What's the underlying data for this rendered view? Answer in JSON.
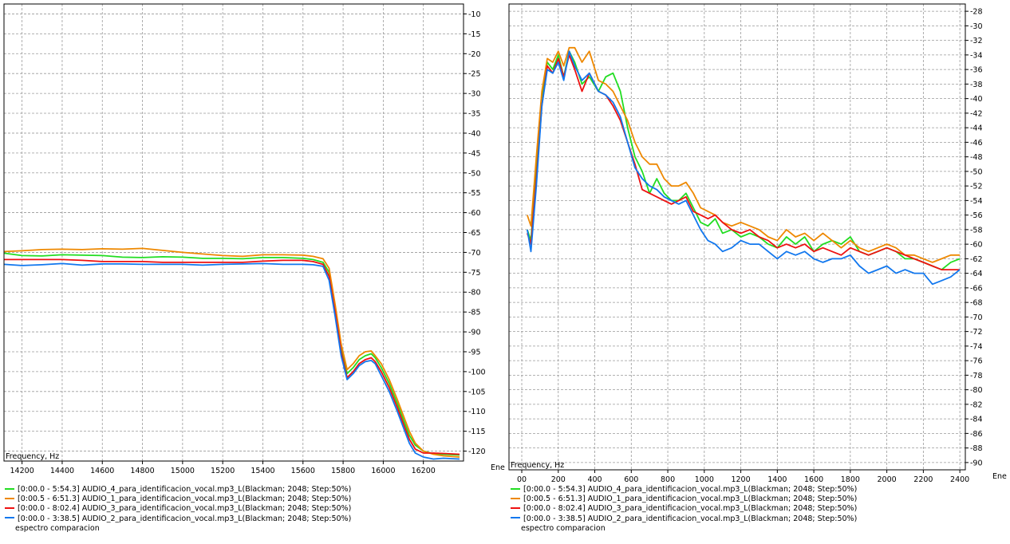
{
  "chart_data": [
    {
      "type": "line",
      "xlabel": "Frequency, Hz",
      "ylabel": "",
      "right_label": "Ene",
      "xlim": [
        14110,
        16400
      ],
      "ylim": [
        -122.5,
        -7.5
      ],
      "x_ticks": [
        14200,
        14400,
        14600,
        14800,
        15000,
        15200,
        15400,
        15600,
        15800,
        16000,
        16200
      ],
      "x_tick_labels": [
        "14200",
        "14400",
        "14600",
        "14800",
        "15000",
        "15200",
        "15400",
        "15600",
        "15800",
        "16000",
        "16200"
      ],
      "y_ticks": [
        -10,
        -15,
        -20,
        -25,
        -30,
        -35,
        -40,
        -45,
        -50,
        -55,
        -60,
        -65,
        -70,
        -75,
        -80,
        -85,
        -90,
        -95,
        -100,
        -105,
        -110,
        -115,
        -120
      ],
      "y_tick_labels": [
        "-10",
        "-15",
        "-20",
        "-25",
        "-30",
        "-35",
        "-40",
        "-45",
        "-50",
        "-55",
        "-60",
        "-65",
        "-70",
        "-75",
        "-80",
        "-85",
        "-90",
        "-95",
        "-100",
        "-105",
        "-110",
        "-115",
        "-120"
      ],
      "grid": true,
      "legend_position": "bottom",
      "series": [
        {
          "name": "[0:00.0 - 5:54.3]  AUDIO_4_para_identificacion_vocal.mp3_L(Blackman; 2048; Step:50%)",
          "color": "#22dd22",
          "x": [
            14110,
            14200,
            14300,
            14400,
            14500,
            14600,
            14700,
            14800,
            14900,
            15000,
            15100,
            15200,
            15300,
            15400,
            15500,
            15600,
            15650,
            15700,
            15730,
            15760,
            15790,
            15820,
            15850,
            15880,
            15910,
            15940,
            15960,
            15990,
            16030,
            16070,
            16100,
            16130,
            16160,
            16200,
            16250,
            16300,
            16380
          ],
          "y": [
            -70.2,
            -70.8,
            -70.9,
            -70.6,
            -70.7,
            -70.8,
            -71.2,
            -71.3,
            -71.1,
            -71.2,
            -71.5,
            -71.5,
            -71.6,
            -71.3,
            -71.3,
            -71.5,
            -71.8,
            -72.5,
            -75,
            -84,
            -94,
            -100.5,
            -99,
            -97,
            -96,
            -95.5,
            -96.5,
            -99,
            -103,
            -108,
            -112,
            -116,
            -118.5,
            -120,
            -120.7,
            -120.8,
            -121
          ]
        },
        {
          "name": "[0:00.5 - 6:51.3]  AUDIO_1_para_identificacion_vocal.mp3_L(Blackman; 2048; Step:50%)",
          "color": "#ee8800",
          "x": [
            14110,
            14200,
            14300,
            14400,
            14500,
            14600,
            14700,
            14800,
            14900,
            15000,
            15100,
            15200,
            15300,
            15400,
            15500,
            15600,
            15650,
            15700,
            15730,
            15760,
            15790,
            15820,
            15850,
            15880,
            15910,
            15940,
            15960,
            15990,
            16030,
            16070,
            16100,
            16130,
            16160,
            16200,
            16250,
            16300,
            16380
          ],
          "y": [
            -69.8,
            -69.6,
            -69.3,
            -69.2,
            -69.3,
            -69.1,
            -69.2,
            -69.0,
            -69.5,
            -70.0,
            -70.4,
            -70.8,
            -71.0,
            -70.6,
            -70.6,
            -70.7,
            -71.0,
            -71.6,
            -74,
            -83,
            -93,
            -99.5,
            -98,
            -96,
            -95,
            -94.8,
            -96,
            -98,
            -102,
            -107,
            -111,
            -115,
            -118,
            -120,
            -120.8,
            -121.2,
            -121.5
          ]
        },
        {
          "name": "[0:00.0 - 8:02.4]  AUDIO_3_para_identificacion_vocal.mp3_L(Blackman; 2048; Step:50%)",
          "color": "#ee1111",
          "x": [
            14110,
            14200,
            14300,
            14400,
            14500,
            14600,
            14700,
            14800,
            14900,
            15000,
            15100,
            15200,
            15300,
            15400,
            15500,
            15600,
            15650,
            15700,
            15730,
            15760,
            15790,
            15820,
            15850,
            15880,
            15910,
            15940,
            15960,
            15990,
            16030,
            16070,
            16100,
            16130,
            16160,
            16200,
            16250,
            16300,
            16380
          ],
          "y": [
            -71.8,
            -71.8,
            -71.8,
            -71.8,
            -72.0,
            -72.3,
            -72.3,
            -72.3,
            -72.5,
            -72.5,
            -72.5,
            -72.5,
            -72.5,
            -72.2,
            -72.0,
            -72.0,
            -72.3,
            -73.0,
            -76,
            -85,
            -95,
            -101.5,
            -100,
            -98,
            -97,
            -96.5,
            -97.5,
            -100,
            -104,
            -109,
            -113,
            -117,
            -119.5,
            -120.5,
            -120.5,
            -120.6,
            -120.8
          ]
        },
        {
          "name": "[0:00.0 - 3:38.5]  AUDIO_2_para_identificacion_vocal.mp3_L(Blackman; 2048; Step:50%)",
          "color": "#1177ee",
          "x": [
            14110,
            14200,
            14300,
            14400,
            14500,
            14600,
            14700,
            14800,
            14900,
            15000,
            15100,
            15200,
            15300,
            15400,
            15500,
            15600,
            15650,
            15700,
            15730,
            15760,
            15790,
            15820,
            15850,
            15880,
            15910,
            15940,
            15960,
            15990,
            16030,
            16070,
            16100,
            16130,
            16160,
            16200,
            16250,
            16300,
            16380
          ],
          "y": [
            -73.0,
            -73.3,
            -73.1,
            -72.8,
            -73.2,
            -72.9,
            -72.9,
            -73.0,
            -73.0,
            -73.0,
            -73.2,
            -73.0,
            -72.9,
            -72.8,
            -73.0,
            -73.0,
            -73.1,
            -73.5,
            -77,
            -86,
            -96,
            -102,
            -100.5,
            -98.5,
            -97.5,
            -97.2,
            -98,
            -101,
            -105,
            -110,
            -114,
            -118,
            -120.5,
            -121.5,
            -122,
            -121.8,
            -122
          ]
        }
      ],
      "legend_caption": "espectro comparacion"
    },
    {
      "type": "line",
      "xlabel": "Frequency, Hz",
      "ylabel": "",
      "right_label": "Ene",
      "xlim": [
        -70,
        2430
      ],
      "ylim": [
        -91,
        -27
      ],
      "x_ticks": [
        0,
        200,
        400,
        600,
        800,
        1000,
        1200,
        1400,
        1600,
        1800,
        2000,
        2200,
        2400
      ],
      "x_tick_labels": [
        "00",
        "200",
        "400",
        "600",
        "800",
        "1000",
        "1200",
        "1400",
        "1600",
        "1800",
        "2000",
        "2200",
        "2400"
      ],
      "y_ticks": [
        -28,
        -30,
        -32,
        -34,
        -36,
        -38,
        -40,
        -42,
        -44,
        -46,
        -48,
        -50,
        -52,
        -54,
        -56,
        -58,
        -60,
        -62,
        -64,
        -66,
        -68,
        -70,
        -72,
        -74,
        -76,
        -78,
        -80,
        -82,
        -84,
        -86,
        -88,
        -90
      ],
      "y_tick_labels": [
        "-28",
        "-30",
        "-32",
        "-34",
        "-36",
        "-38",
        "-40",
        "-42",
        "-44",
        "-46",
        "-48",
        "-50",
        "-52",
        "-54",
        "-56",
        "-58",
        "-60",
        "-62",
        "-64",
        "-66",
        "-68",
        "-70",
        "-72",
        "-74",
        "-76",
        "-78",
        "-80",
        "-82",
        "-84",
        "-86",
        "-88",
        "-90"
      ],
      "grid": true,
      "legend_position": "bottom",
      "series": [
        {
          "name": "[0:00.0 - 5:54.3]  AUDIO_4_para_identificacion_vocal.mp3_L(Blackman; 2048; Step:50%)",
          "color": "#22dd22",
          "x": [
            30,
            50,
            80,
            110,
            140,
            170,
            200,
            230,
            260,
            290,
            330,
            370,
            420,
            460,
            500,
            540,
            580,
            620,
            660,
            700,
            740,
            780,
            820,
            860,
            900,
            940,
            980,
            1020,
            1060,
            1100,
            1150,
            1200,
            1250,
            1300,
            1350,
            1400,
            1450,
            1500,
            1550,
            1600,
            1650,
            1700,
            1750,
            1800,
            1850,
            1900,
            1950,
            2000,
            2050,
            2100,
            2150,
            2200,
            2250,
            2300,
            2350,
            2400
          ],
          "y": [
            -58,
            -59.5,
            -50,
            -40,
            -35,
            -36,
            -34,
            -37,
            -33.5,
            -35,
            -38,
            -37,
            -39,
            -37,
            -36.5,
            -39,
            -44,
            -48,
            -50,
            -53,
            -51,
            -53,
            -54,
            -54,
            -53,
            -55,
            -57,
            -57.5,
            -56.5,
            -58.5,
            -58,
            -59,
            -58.5,
            -59,
            -60,
            -60.5,
            -59,
            -60,
            -59,
            -61,
            -60,
            -59.5,
            -60,
            -59,
            -61,
            -61.5,
            -61,
            -60.5,
            -61,
            -62,
            -62,
            -62.5,
            -63,
            -63.5,
            -62.5,
            -62
          ]
        },
        {
          "name": "[0:00.5 - 6:51.3]  AUDIO_1_para_identificacion_vocal.mp3_L(Blackman; 2048; Step:50%)",
          "color": "#ee8800",
          "x": [
            30,
            50,
            80,
            110,
            140,
            170,
            200,
            230,
            260,
            290,
            330,
            370,
            420,
            460,
            500,
            540,
            580,
            620,
            660,
            700,
            740,
            780,
            820,
            860,
            900,
            940,
            980,
            1020,
            1060,
            1100,
            1150,
            1200,
            1250,
            1300,
            1350,
            1400,
            1450,
            1500,
            1550,
            1600,
            1650,
            1700,
            1750,
            1800,
            1850,
            1900,
            1950,
            2000,
            2050,
            2100,
            2150,
            2200,
            2250,
            2300,
            2350,
            2400
          ],
          "y": [
            -56,
            -57.5,
            -48,
            -39,
            -34.5,
            -35,
            -33.5,
            -35.5,
            -33,
            -33,
            -35,
            -33.5,
            -37.5,
            -38,
            -39,
            -41,
            -43,
            -46,
            -48,
            -49,
            -49,
            -51,
            -52,
            -52,
            -51.5,
            -53,
            -55,
            -55.5,
            -56,
            -57,
            -57.5,
            -57,
            -57.5,
            -58,
            -59,
            -59.5,
            -58,
            -59,
            -58.5,
            -59.5,
            -58.5,
            -59.5,
            -60.5,
            -59.5,
            -60.5,
            -61,
            -60.5,
            -60,
            -60.5,
            -61.5,
            -61.5,
            -62,
            -62.5,
            -62,
            -61.5,
            -61.5
          ]
        },
        {
          "name": "[0:00.0 - 8:02.4]  AUDIO_3_para_identificacion_vocal.mp3_L(Blackman; 2048; Step:50%)",
          "color": "#ee1111",
          "x": [
            30,
            50,
            80,
            110,
            140,
            170,
            200,
            230,
            260,
            290,
            330,
            370,
            420,
            460,
            500,
            540,
            580,
            620,
            660,
            700,
            740,
            780,
            820,
            860,
            900,
            940,
            980,
            1020,
            1060,
            1100,
            1150,
            1200,
            1250,
            1300,
            1350,
            1400,
            1450,
            1500,
            1550,
            1600,
            1650,
            1700,
            1750,
            1800,
            1850,
            1900,
            1950,
            2000,
            2050,
            2100,
            2150,
            2200,
            2250,
            2300,
            2350,
            2400
          ],
          "y": [
            -58.5,
            -60,
            -51,
            -41,
            -35.5,
            -36.5,
            -34.5,
            -37,
            -34,
            -36,
            -39,
            -36.5,
            -39,
            -39.5,
            -41,
            -43,
            -46,
            -49,
            -52.5,
            -53,
            -53.5,
            -54,
            -54.5,
            -54,
            -53.5,
            -55.5,
            -56,
            -56.5,
            -56,
            -57,
            -58,
            -58.5,
            -58,
            -59,
            -59.5,
            -60.5,
            -60,
            -60.5,
            -60,
            -61,
            -60.5,
            -61,
            -61.5,
            -60.5,
            -61,
            -61.5,
            -61,
            -60.5,
            -61,
            -61.5,
            -62,
            -62.5,
            -63,
            -63.5,
            -63.5,
            -63.5
          ]
        },
        {
          "name": "[0:00.0 - 3:38.5]  AUDIO_2_para_identificacion_vocal.mp3_L(Blackman; 2048; Step:50%)",
          "color": "#1177ee",
          "x": [
            30,
            50,
            80,
            110,
            140,
            170,
            200,
            230,
            260,
            290,
            330,
            370,
            420,
            460,
            500,
            540,
            580,
            620,
            660,
            700,
            740,
            780,
            820,
            860,
            900,
            940,
            980,
            1020,
            1060,
            1100,
            1150,
            1200,
            1250,
            1300,
            1350,
            1400,
            1450,
            1500,
            1550,
            1600,
            1650,
            1700,
            1750,
            1800,
            1850,
            1900,
            1950,
            2000,
            2050,
            2100,
            2150,
            2200,
            2250,
            2300,
            2350,
            2400
          ],
          "y": [
            -58,
            -61,
            -52,
            -41,
            -36,
            -36.5,
            -35,
            -37.5,
            -33.5,
            -35.5,
            -37.5,
            -36.5,
            -39,
            -39.5,
            -40.5,
            -42.5,
            -46,
            -49.5,
            -51,
            -52,
            -52.5,
            -53.5,
            -54,
            -54.5,
            -54,
            -56,
            -58,
            -59.5,
            -60,
            -61,
            -60.5,
            -59.5,
            -60,
            -60,
            -61,
            -62,
            -61,
            -61.5,
            -61,
            -62,
            -62.5,
            -62,
            -62,
            -61.5,
            -63,
            -64,
            -63.5,
            -63,
            -64,
            -63.5,
            -64,
            -64,
            -65.5,
            -65,
            -64.5,
            -63.5
          ]
        }
      ],
      "legend_caption": "espectro comparacion"
    }
  ]
}
